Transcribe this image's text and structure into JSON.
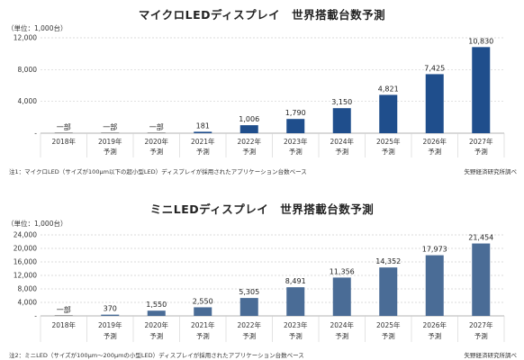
{
  "chart_data": [
    {
      "type": "bar",
      "title": "マイクロLEDディスプレイ　世界搭載台数予測",
      "unit_label": "（単位：1,000台）",
      "categories": [
        "2018年",
        "2019年",
        "2020年",
        "2021年",
        "2022年",
        "2023年",
        "2024年",
        "2025年",
        "2026年",
        "2027年"
      ],
      "category_sublabels": [
        "",
        "予測",
        "予測",
        "予測",
        "予測",
        "予測",
        "予測",
        "予測",
        "予測",
        "予測"
      ],
      "values": [
        0,
        0,
        0,
        181,
        1006,
        1790,
        3150,
        4821,
        7425,
        10830
      ],
      "data_labels": [
        "一部",
        "一部",
        "一部",
        "181",
        "1,006",
        "1,790",
        "3,150",
        "4,821",
        "7,425",
        "10,830"
      ],
      "ylim": [
        0,
        12000
      ],
      "yticks": [
        0,
        4000,
        8000,
        12000
      ],
      "ytick_labels": [
        "-",
        "4,000",
        "8,000",
        "12,000"
      ],
      "bar_color": "#1f4e8c",
      "grid": true,
      "note": "注1：マイクロLED（サイズが100µm以下の超小型LED）ディスプレイが採用されたアプリケーション台数ベース",
      "source": "矢野経済研究所調べ"
    },
    {
      "type": "bar",
      "title": "ミニLEDディスプレイ　世界搭載台数予測",
      "unit_label": "（単位：1,000台）",
      "categories": [
        "2018年",
        "2019年",
        "2020年",
        "2021年",
        "2022年",
        "2023年",
        "2024年",
        "2025年",
        "2026年",
        "2027年"
      ],
      "category_sublabels": [
        "",
        "予測",
        "予測",
        "予測",
        "予測",
        "予測",
        "予測",
        "予測",
        "予測",
        "予測"
      ],
      "values": [
        0,
        370,
        1550,
        2550,
        5305,
        8491,
        11356,
        14352,
        17973,
        21454
      ],
      "data_labels": [
        "一部",
        "370",
        "1,550",
        "2,550",
        "5,305",
        "8,491",
        "11,356",
        "14,352",
        "17,973",
        "21,454"
      ],
      "ylim": [
        0,
        24000
      ],
      "yticks": [
        0,
        4000,
        8000,
        12000,
        16000,
        20000,
        24000
      ],
      "ytick_labels": [
        "-",
        "4,000",
        "8,000",
        "12,000",
        "16,000",
        "20,000",
        "24,000"
      ],
      "bar_color": "#4a6c96",
      "grid": true,
      "note": "注2：ミニLED（サイズが100µm～200µmの小型LED）ディスプレイが採用されたアプリケーション台数ベース",
      "source": "矢野経済研究所調べ"
    }
  ]
}
